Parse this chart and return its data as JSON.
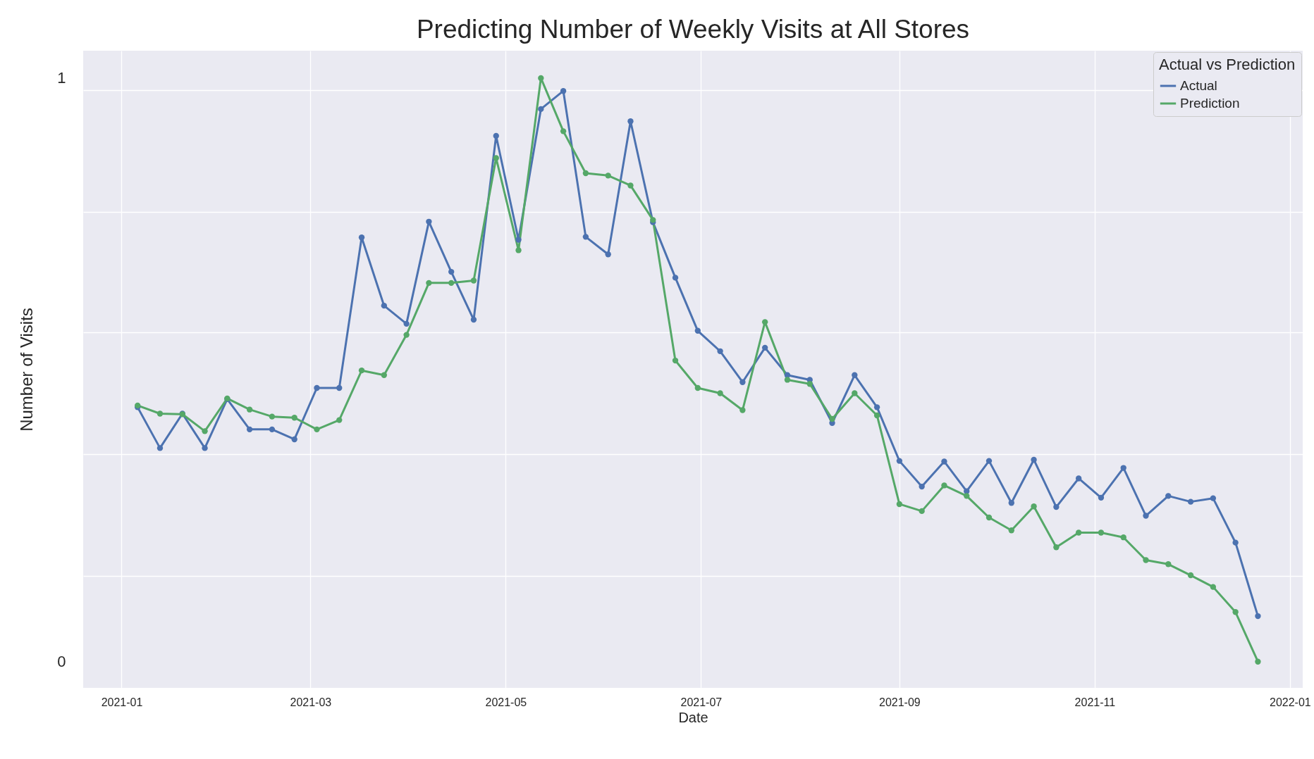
{
  "chart_data": {
    "type": "line",
    "title": "Predicting Number of Weekly Visits at All Stores",
    "xlabel": "Date",
    "ylabel": "Number of Visits",
    "legend_title": "Actual vs Prediction",
    "x": [
      "2021-01-06",
      "2021-01-13",
      "2021-01-20",
      "2021-01-27",
      "2021-02-03",
      "2021-02-10",
      "2021-02-17",
      "2021-02-24",
      "2021-03-03",
      "2021-03-10",
      "2021-03-17",
      "2021-03-24",
      "2021-03-31",
      "2021-04-07",
      "2021-04-14",
      "2021-04-21",
      "2021-04-28",
      "2021-05-05",
      "2021-05-12",
      "2021-05-19",
      "2021-05-26",
      "2021-06-02",
      "2021-06-09",
      "2021-06-16",
      "2021-06-23",
      "2021-06-30",
      "2021-07-07",
      "2021-07-14",
      "2021-07-21",
      "2021-07-28",
      "2021-08-04",
      "2021-08-11",
      "2021-08-18",
      "2021-08-25",
      "2021-09-01",
      "2021-09-08",
      "2021-09-15",
      "2021-09-22",
      "2021-09-29",
      "2021-10-06",
      "2021-10-13",
      "2021-10-20",
      "2021-10-27",
      "2021-11-03",
      "2021-11-10",
      "2021-11-17",
      "2021-11-24",
      "2021-12-01",
      "2021-12-08",
      "2021-12-15",
      "2021-12-22"
    ],
    "series": [
      {
        "name": "Actual",
        "color": "#4c72b0",
        "values": [
          0.436,
          0.366,
          0.425,
          0.366,
          0.45,
          0.398,
          0.398,
          0.381,
          0.469,
          0.469,
          0.727,
          0.61,
          0.579,
          0.754,
          0.668,
          0.586,
          0.901,
          0.723,
          0.947,
          0.978,
          0.728,
          0.698,
          0.926,
          0.753,
          0.658,
          0.567,
          0.532,
          0.479,
          0.538,
          0.491,
          0.483,
          0.409,
          0.491,
          0.436,
          0.344,
          0.3,
          0.343,
          0.292,
          0.344,
          0.272,
          0.346,
          0.265,
          0.314,
          0.281,
          0.332,
          0.25,
          0.284,
          0.274,
          0.28,
          0.204,
          0.078
        ]
      },
      {
        "name": "Prediction",
        "color": "#55a868",
        "values": [
          0.439,
          0.425,
          0.424,
          0.395,
          0.451,
          0.432,
          0.42,
          0.418,
          0.398,
          0.414,
          0.499,
          0.491,
          0.56,
          0.649,
          0.649,
          0.653,
          0.863,
          0.705,
          1.0,
          0.909,
          0.837,
          0.833,
          0.816,
          0.757,
          0.516,
          0.469,
          0.46,
          0.431,
          0.582,
          0.483,
          0.476,
          0.416,
          0.46,
          0.422,
          0.27,
          0.258,
          0.302,
          0.284,
          0.247,
          0.225,
          0.266,
          0.196,
          0.221,
          0.221,
          0.213,
          0.174,
          0.167,
          0.148,
          0.128,
          0.085,
          0
        ]
      }
    ],
    "xlim": [
      "2020-12-20",
      "2022-01-05"
    ],
    "xticks": [
      {
        "value": "2021-01",
        "label": "2021-01"
      },
      {
        "value": "2021-03",
        "label": "2021-03"
      },
      {
        "value": "2021-05",
        "label": "2021-05"
      },
      {
        "value": "2021-07",
        "label": "2021-07"
      },
      {
        "value": "2021-09",
        "label": "2021-09"
      },
      {
        "value": "2021-11",
        "label": "2021-11"
      },
      {
        "value": "2022-01",
        "label": "2022-01"
      }
    ],
    "ylim": [
      -0.045,
      1.047
    ],
    "yticks": [
      0,
      {
        "value": 0.147,
        "label": null
      },
      {
        "value": 0.355,
        "label": null
      },
      {
        "value": 0.564,
        "label": null
      },
      {
        "value": 0.771,
        "label": null
      },
      {
        "value": 0.979,
        "label": null
      },
      1
    ],
    "grid": true,
    "legend": "top right",
    "marker": "circle",
    "line_style": "solid"
  }
}
